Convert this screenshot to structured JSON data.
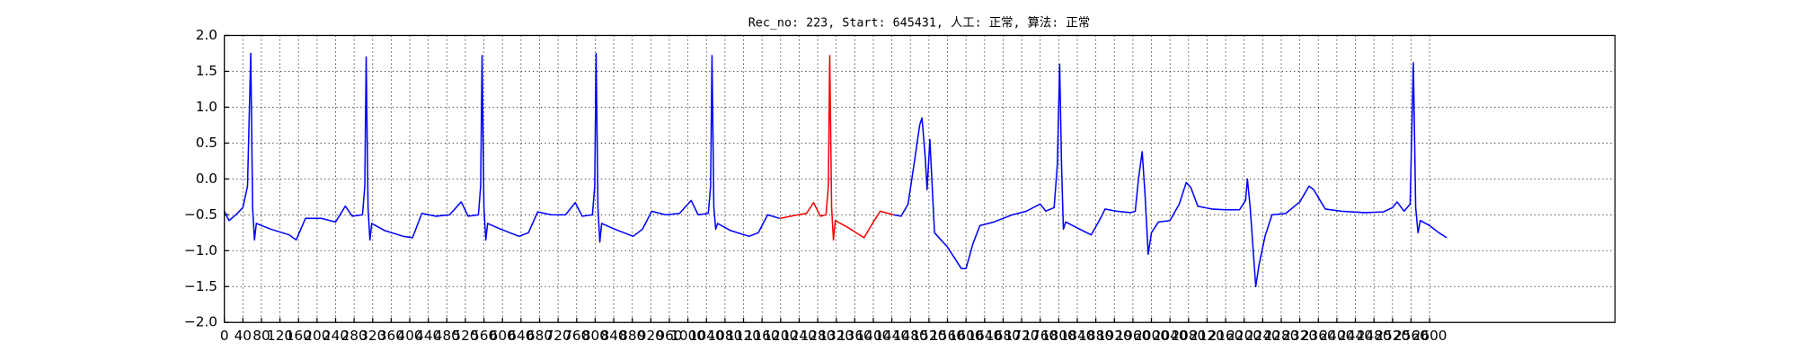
{
  "chart_data": {
    "type": "line",
    "title": "Rec_no: 223, Start: 645431, 人工: 正常, 算法: 正常",
    "xlim": [
      0,
      3000
    ],
    "xticks": [
      0,
      40,
      80,
      120,
      160,
      200,
      240,
      280,
      320,
      360,
      400,
      440,
      480,
      520,
      560,
      600,
      640,
      680,
      720,
      760,
      800,
      840,
      880,
      920,
      960,
      1000,
      1040,
      1080,
      1120,
      1160,
      1200,
      1240,
      1280,
      1320,
      1360,
      1400,
      1440,
      1480,
      1520,
      1560,
      1600,
      1640,
      1680,
      1720,
      1760,
      1800,
      1840,
      1880,
      1920,
      1960,
      2000,
      2040,
      2080,
      2120,
      2160,
      2200,
      2240,
      2280,
      2320,
      2360,
      2400,
      2440,
      2480,
      2520,
      2560,
      2600
    ],
    "ylim": [
      -2,
      2
    ],
    "yticks": [
      {
        "value": -2,
        "label": "−2.0"
      },
      {
        "value": -1.5,
        "label": "−1.5"
      },
      {
        "value": -1,
        "label": "−1.0"
      },
      {
        "value": -0.5,
        "label": "−0.5"
      },
      {
        "value": 0,
        "label": "0.0"
      },
      {
        "value": 0.5,
        "label": "0.5"
      },
      {
        "value": 1,
        "label": "1.0"
      },
      {
        "value": 1.5,
        "label": "1.5"
      },
      {
        "value": 2,
        "label": "2.0"
      }
    ],
    "grid": true,
    "series": [
      {
        "color": "#0000ff",
        "x": [
          0,
          10,
          25,
          40,
          50,
          57,
          61,
          65,
          69,
          100,
          140,
          155,
          175,
          210,
          240,
          261,
          276,
          298,
          303,
          306,
          310,
          314,
          318,
          346,
          386,
          406,
          426,
          456,
          486,
          511,
          526,
          548,
          553,
          556,
          560,
          564,
          568,
          596,
          636,
          656,
          676,
          706,
          736,
          757,
          772,
          794,
          799,
          802,
          806,
          810,
          814,
          842,
          882,
          902,
          922,
          952,
          982,
          1007,
          1022,
          1044,
          1049,
          1052,
          1056,
          1060,
          1064,
          1092,
          1132,
          1152,
          1172,
          1198
        ],
        "values": [
          -0.45,
          -0.58,
          -0.5,
          -0.4,
          -0.1,
          1.75,
          -0.4,
          -0.85,
          -0.62,
          -0.7,
          -0.78,
          -0.85,
          -0.55,
          -0.55,
          -0.6,
          -0.38,
          -0.52,
          -0.5,
          -0.1,
          1.7,
          -0.4,
          -0.85,
          -0.62,
          -0.72,
          -0.8,
          -0.82,
          -0.48,
          -0.52,
          -0.5,
          -0.32,
          -0.52,
          -0.5,
          -0.1,
          1.72,
          -0.4,
          -0.85,
          -0.62,
          -0.7,
          -0.8,
          -0.75,
          -0.46,
          -0.5,
          -0.5,
          -0.33,
          -0.52,
          -0.5,
          -0.1,
          1.75,
          -0.4,
          -0.88,
          -0.62,
          -0.7,
          -0.8,
          -0.7,
          -0.45,
          -0.5,
          -0.48,
          -0.3,
          -0.5,
          -0.48,
          -0.1,
          1.72,
          -0.4,
          -0.7,
          -0.62,
          -0.72,
          -0.8,
          -0.75,
          -0.5,
          -0.55
        ]
      },
      {
        "color": "#ff0000",
        "x": [
          1198,
          1222,
          1256,
          1271,
          1286,
          1298,
          1303,
          1306,
          1310,
          1314,
          1318,
          1346,
          1380,
          1400,
          1415,
          1444
        ],
        "values": [
          -0.55,
          -0.52,
          -0.48,
          -0.33,
          -0.52,
          -0.5,
          -0.1,
          1.72,
          -0.4,
          -0.85,
          -0.58,
          -0.68,
          -0.82,
          -0.6,
          -0.45,
          -0.5
        ]
      },
      {
        "color": "#0000ff",
        "x": [
          1444,
          1460,
          1475,
          1490,
          1500,
          1505,
          1512,
          1516,
          1522,
          1527,
          1532,
          1560,
          1590,
          1600,
          1615,
          1630,
          1660,
          1700,
          1730,
          1760,
          1772,
          1790,
          1797,
          1802,
          1806,
          1810,
          1815,
          1845,
          1870,
          1890,
          1900,
          1925,
          1955,
          1965,
          1972,
          1980,
          1986,
          1993,
          2000,
          2015,
          2040,
          2060,
          2075,
          2085,
          2100,
          2130,
          2160,
          2190,
          2203,
          2207,
          2213,
          2225,
          2232,
          2245,
          2260,
          2290,
          2320,
          2340,
          2350,
          2375,
          2410,
          2460,
          2500,
          2520,
          2530,
          2545,
          2558,
          2565,
          2570,
          2575,
          2580,
          2600,
          2620,
          2637
        ],
        "values": [
          -0.5,
          -0.52,
          -0.35,
          0.3,
          0.75,
          0.85,
          0.3,
          -0.15,
          0.55,
          -0.1,
          -0.75,
          -0.95,
          -1.25,
          -1.25,
          -0.9,
          -0.65,
          -0.6,
          -0.5,
          -0.45,
          -0.35,
          -0.45,
          -0.4,
          0.2,
          1.6,
          0.2,
          -0.7,
          -0.6,
          -0.7,
          -0.78,
          -0.55,
          -0.42,
          -0.45,
          -0.47,
          -0.45,
          0,
          0.38,
          -0.2,
          -1.05,
          -0.75,
          -0.6,
          -0.58,
          -0.35,
          -0.05,
          -0.12,
          -0.38,
          -0.42,
          -0.43,
          -0.43,
          -0.3,
          0,
          -0.4,
          -1.5,
          -1.2,
          -0.8,
          -0.5,
          -0.48,
          -0.32,
          -0.1,
          -0.15,
          -0.42,
          -0.45,
          -0.47,
          -0.46,
          -0.4,
          -0.32,
          -0.45,
          -0.35,
          1.62,
          -0.4,
          -0.75,
          -0.58,
          -0.65,
          -0.75,
          -0.82
        ]
      }
    ]
  }
}
